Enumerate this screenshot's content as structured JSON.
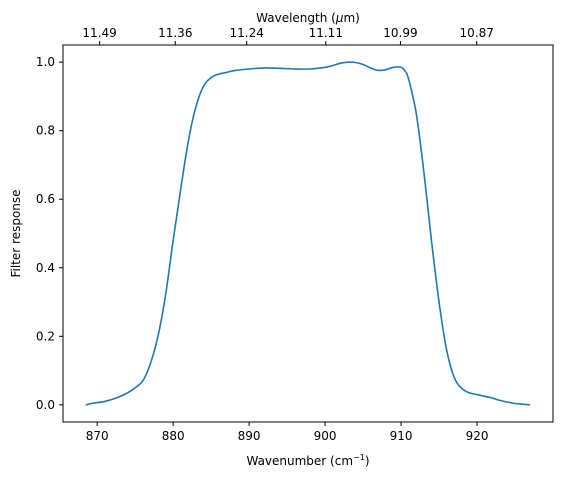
{
  "chart_data": {
    "type": "line",
    "title": "",
    "xlabel": "Wavenumber (cm",
    "xlabel_sup": "−1",
    "xlabel_tail": ")",
    "ylabel": "Filter response",
    "top_xlabel": "Wavelength (",
    "top_xlabel_mu": "μ",
    "top_xlabel_tail": "m)",
    "xlim": [
      865.5,
      930
    ],
    "ylim": [
      -0.05,
      1.05
    ],
    "grid": false,
    "x_ticks": [
      870,
      880,
      890,
      900,
      910,
      920
    ],
    "x_tick_labels": [
      "870",
      "880",
      "890",
      "900",
      "910",
      "920"
    ],
    "y_ticks": [
      0.0,
      0.2,
      0.4,
      0.6,
      0.8,
      1.0
    ],
    "y_tick_labels": [
      "0.0",
      "0.2",
      "0.4",
      "0.6",
      "0.8",
      "1.0"
    ],
    "top_ticks": [
      {
        "label": "11.49",
        "at": 870.32
      },
      {
        "label": "11.36",
        "at": 880.28
      },
      {
        "label": "11.24",
        "at": 889.68
      },
      {
        "label": "11.11",
        "at": 900.09
      },
      {
        "label": "10.99",
        "at": 909.92
      },
      {
        "label": "10.87",
        "at": 919.96
      }
    ],
    "series": [
      {
        "color": "#1f77b4",
        "x": [
          868.5,
          869.5,
          871,
          872.5,
          874,
          875,
          876,
          877,
          878,
          879,
          880,
          881,
          882,
          883,
          884,
          885,
          886,
          887,
          888,
          890,
          892,
          894,
          896,
          898,
          900,
          901,
          902,
          903,
          904,
          905,
          906,
          907,
          908,
          909,
          910,
          910.5,
          911,
          912,
          913,
          914,
          915,
          916,
          917,
          918,
          919,
          920,
          921,
          922,
          923,
          924,
          925,
          926,
          927
        ],
        "y": [
          0.0,
          0.005,
          0.01,
          0.02,
          0.035,
          0.05,
          0.07,
          0.12,
          0.2,
          0.32,
          0.48,
          0.63,
          0.77,
          0.87,
          0.93,
          0.955,
          0.965,
          0.97,
          0.975,
          0.98,
          0.983,
          0.982,
          0.98,
          0.98,
          0.985,
          0.99,
          0.997,
          1.0,
          0.999,
          0.993,
          0.983,
          0.976,
          0.978,
          0.985,
          0.985,
          0.975,
          0.95,
          0.85,
          0.68,
          0.48,
          0.3,
          0.16,
          0.08,
          0.048,
          0.035,
          0.03,
          0.025,
          0.02,
          0.013,
          0.008,
          0.004,
          0.002,
          0.0
        ]
      }
    ]
  }
}
